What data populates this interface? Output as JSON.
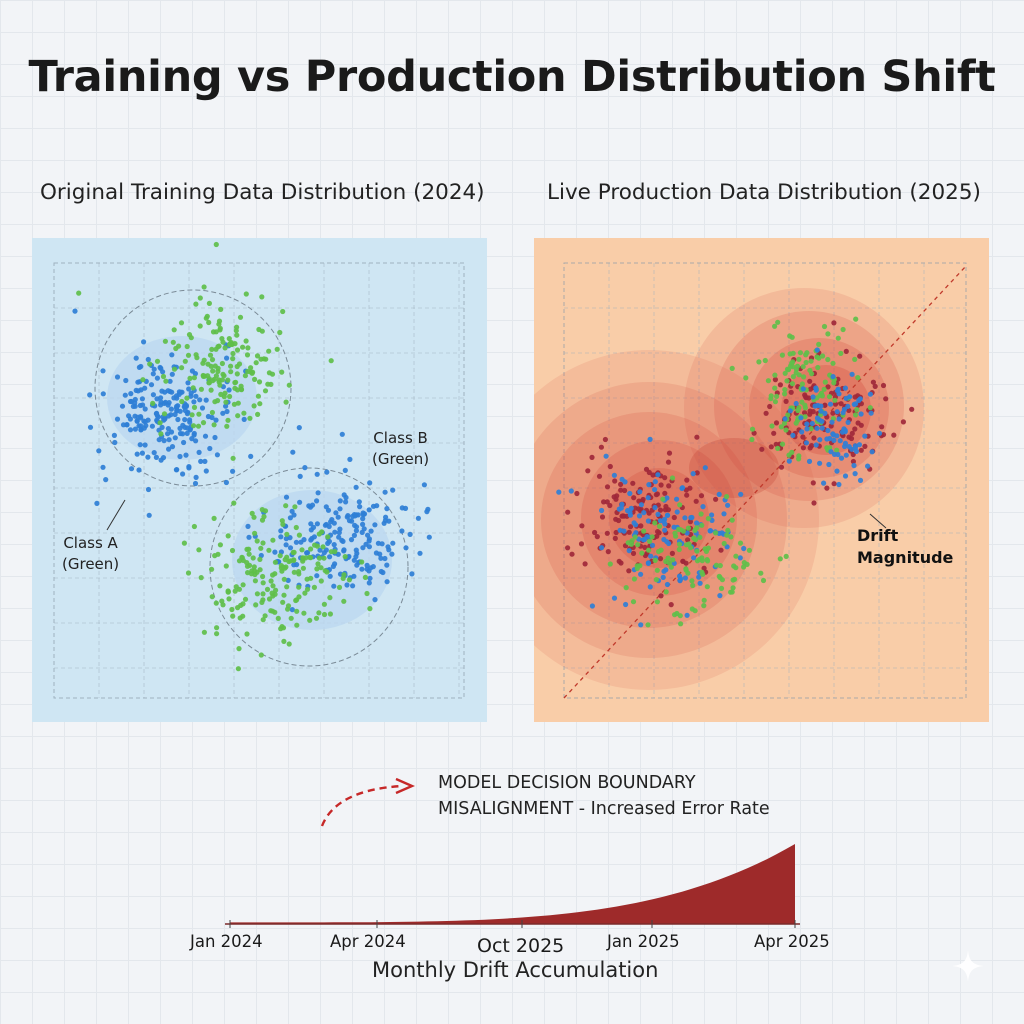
{
  "title": "Training vs Production Distribution Shift",
  "panels": {
    "left": {
      "title": "Original Training Data Distribution (2024)",
      "annotations": {
        "class_b_line1": "Class B",
        "class_b_line2": "(Green)",
        "class_a_line1": "Class A",
        "class_a_line2": "(Green)"
      }
    },
    "right": {
      "title": "Live Production Data Distribution (2025)",
      "drift_line1": "Drift",
      "drift_line2": "Magnitude"
    }
  },
  "callout": {
    "line1": "MODEL DECISION BOUNDARY",
    "line2": "MISALIGNMENT - Increased Error Rate"
  },
  "colors": {
    "blue_points": "#2f7fd6",
    "green_points": "#5fbf4a",
    "drift_red": "#9e2a2a",
    "left_bg": "#cfe6f3",
    "right_bg": "#f9cda8"
  },
  "chart_data": {
    "type": "area",
    "title": "Monthly Drift Accumulation",
    "xlabel": "Monthly Drift Accumulation",
    "ylabel": "",
    "categories": [
      "Jan 2024",
      "Apr 2024",
      "Oct 2025",
      "Jan 2025",
      "Apr 2025"
    ],
    "series": [
      {
        "name": "Drift",
        "values": [
          0.02,
          0.05,
          0.12,
          0.3,
          1.0
        ]
      }
    ],
    "ylim": [
      0,
      1
    ],
    "grid": false
  },
  "icons": {
    "sparkle": "sparkle-icon",
    "arrow": "dashed-curved-arrow-icon"
  }
}
